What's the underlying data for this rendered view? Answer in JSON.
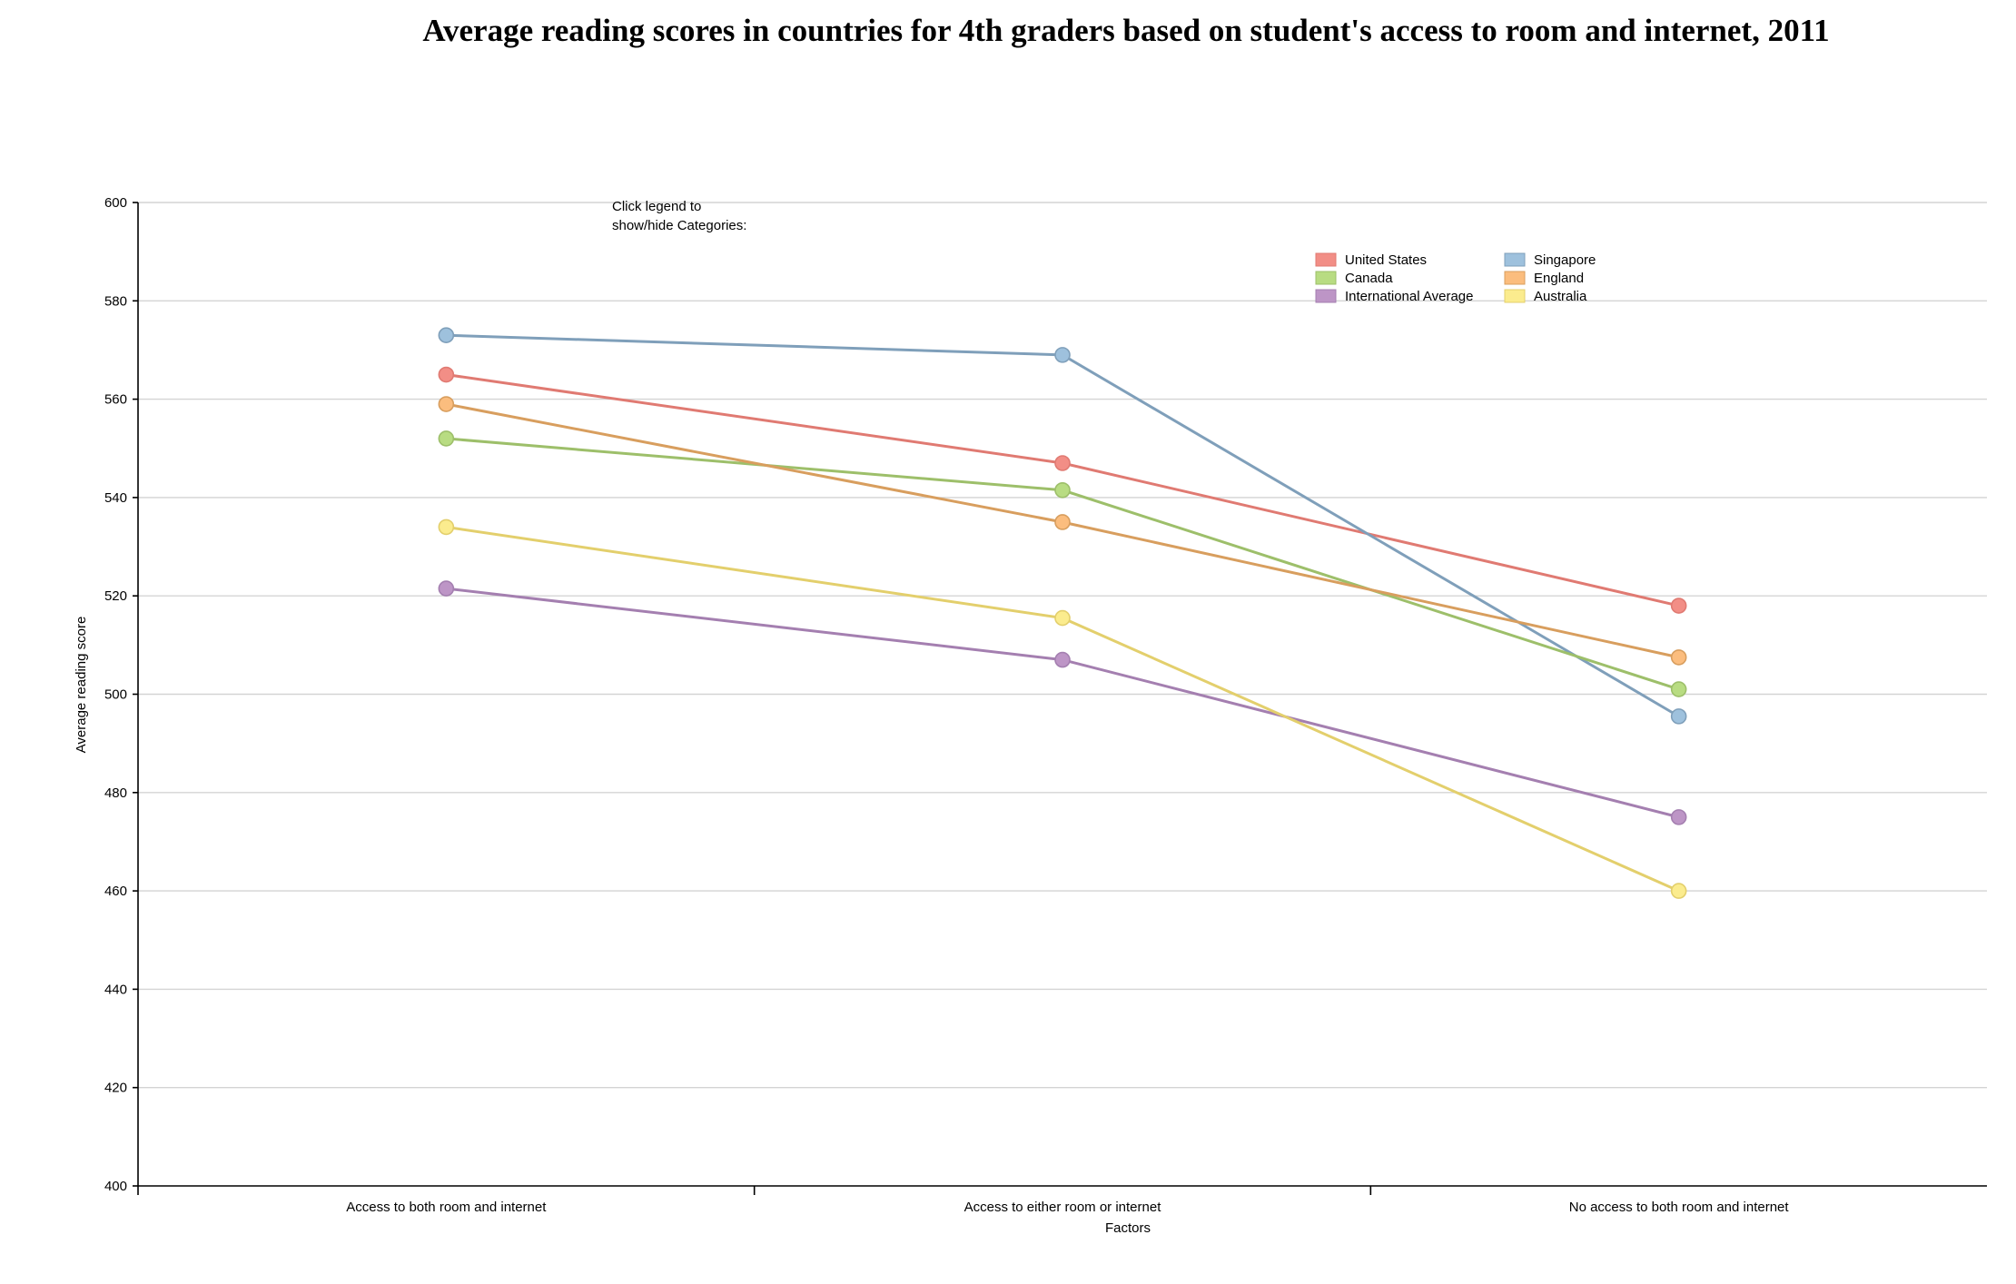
{
  "chart_data": {
    "type": "line",
    "title": "Average reading scores in countries for 4th graders based on student's access to room and internet, 2011",
    "xlabel": "Factors",
    "ylabel": "Average reading score",
    "categories": [
      "Access to both room and internet",
      "Access to either room or internet",
      "No access to both room and internet"
    ],
    "ylim": [
      400,
      600
    ],
    "yticks": [
      400,
      420,
      440,
      460,
      480,
      500,
      520,
      540,
      560,
      580,
      600
    ],
    "grid": true,
    "legend_note": [
      "Click legend to",
      "show/hide Categories:"
    ],
    "legend_position": "top-right",
    "series": [
      {
        "name": "United States",
        "values": [
          565,
          547,
          518
        ],
        "line_color": "#e07a72",
        "point_color": "#f28e86"
      },
      {
        "name": "Singapore",
        "values": [
          573,
          569,
          495.5
        ],
        "line_color": "#7f9fba",
        "point_color": "#9ec1dd"
      },
      {
        "name": "Canada",
        "values": [
          552,
          541.5,
          501
        ],
        "line_color": "#9dbf6a",
        "point_color": "#b8dc82"
      },
      {
        "name": "England",
        "values": [
          559,
          535,
          507.5
        ],
        "line_color": "#d89e5e",
        "point_color": "#fbbd7e"
      },
      {
        "name": "International Average",
        "values": [
          521.5,
          507,
          475
        ],
        "line_color": "#a47fb0",
        "point_color": "#bd95c6"
      },
      {
        "name": "Australia",
        "values": [
          534,
          515.5,
          460
        ],
        "line_color": "#e3cf6c",
        "point_color": "#fbec8e"
      }
    ]
  }
}
